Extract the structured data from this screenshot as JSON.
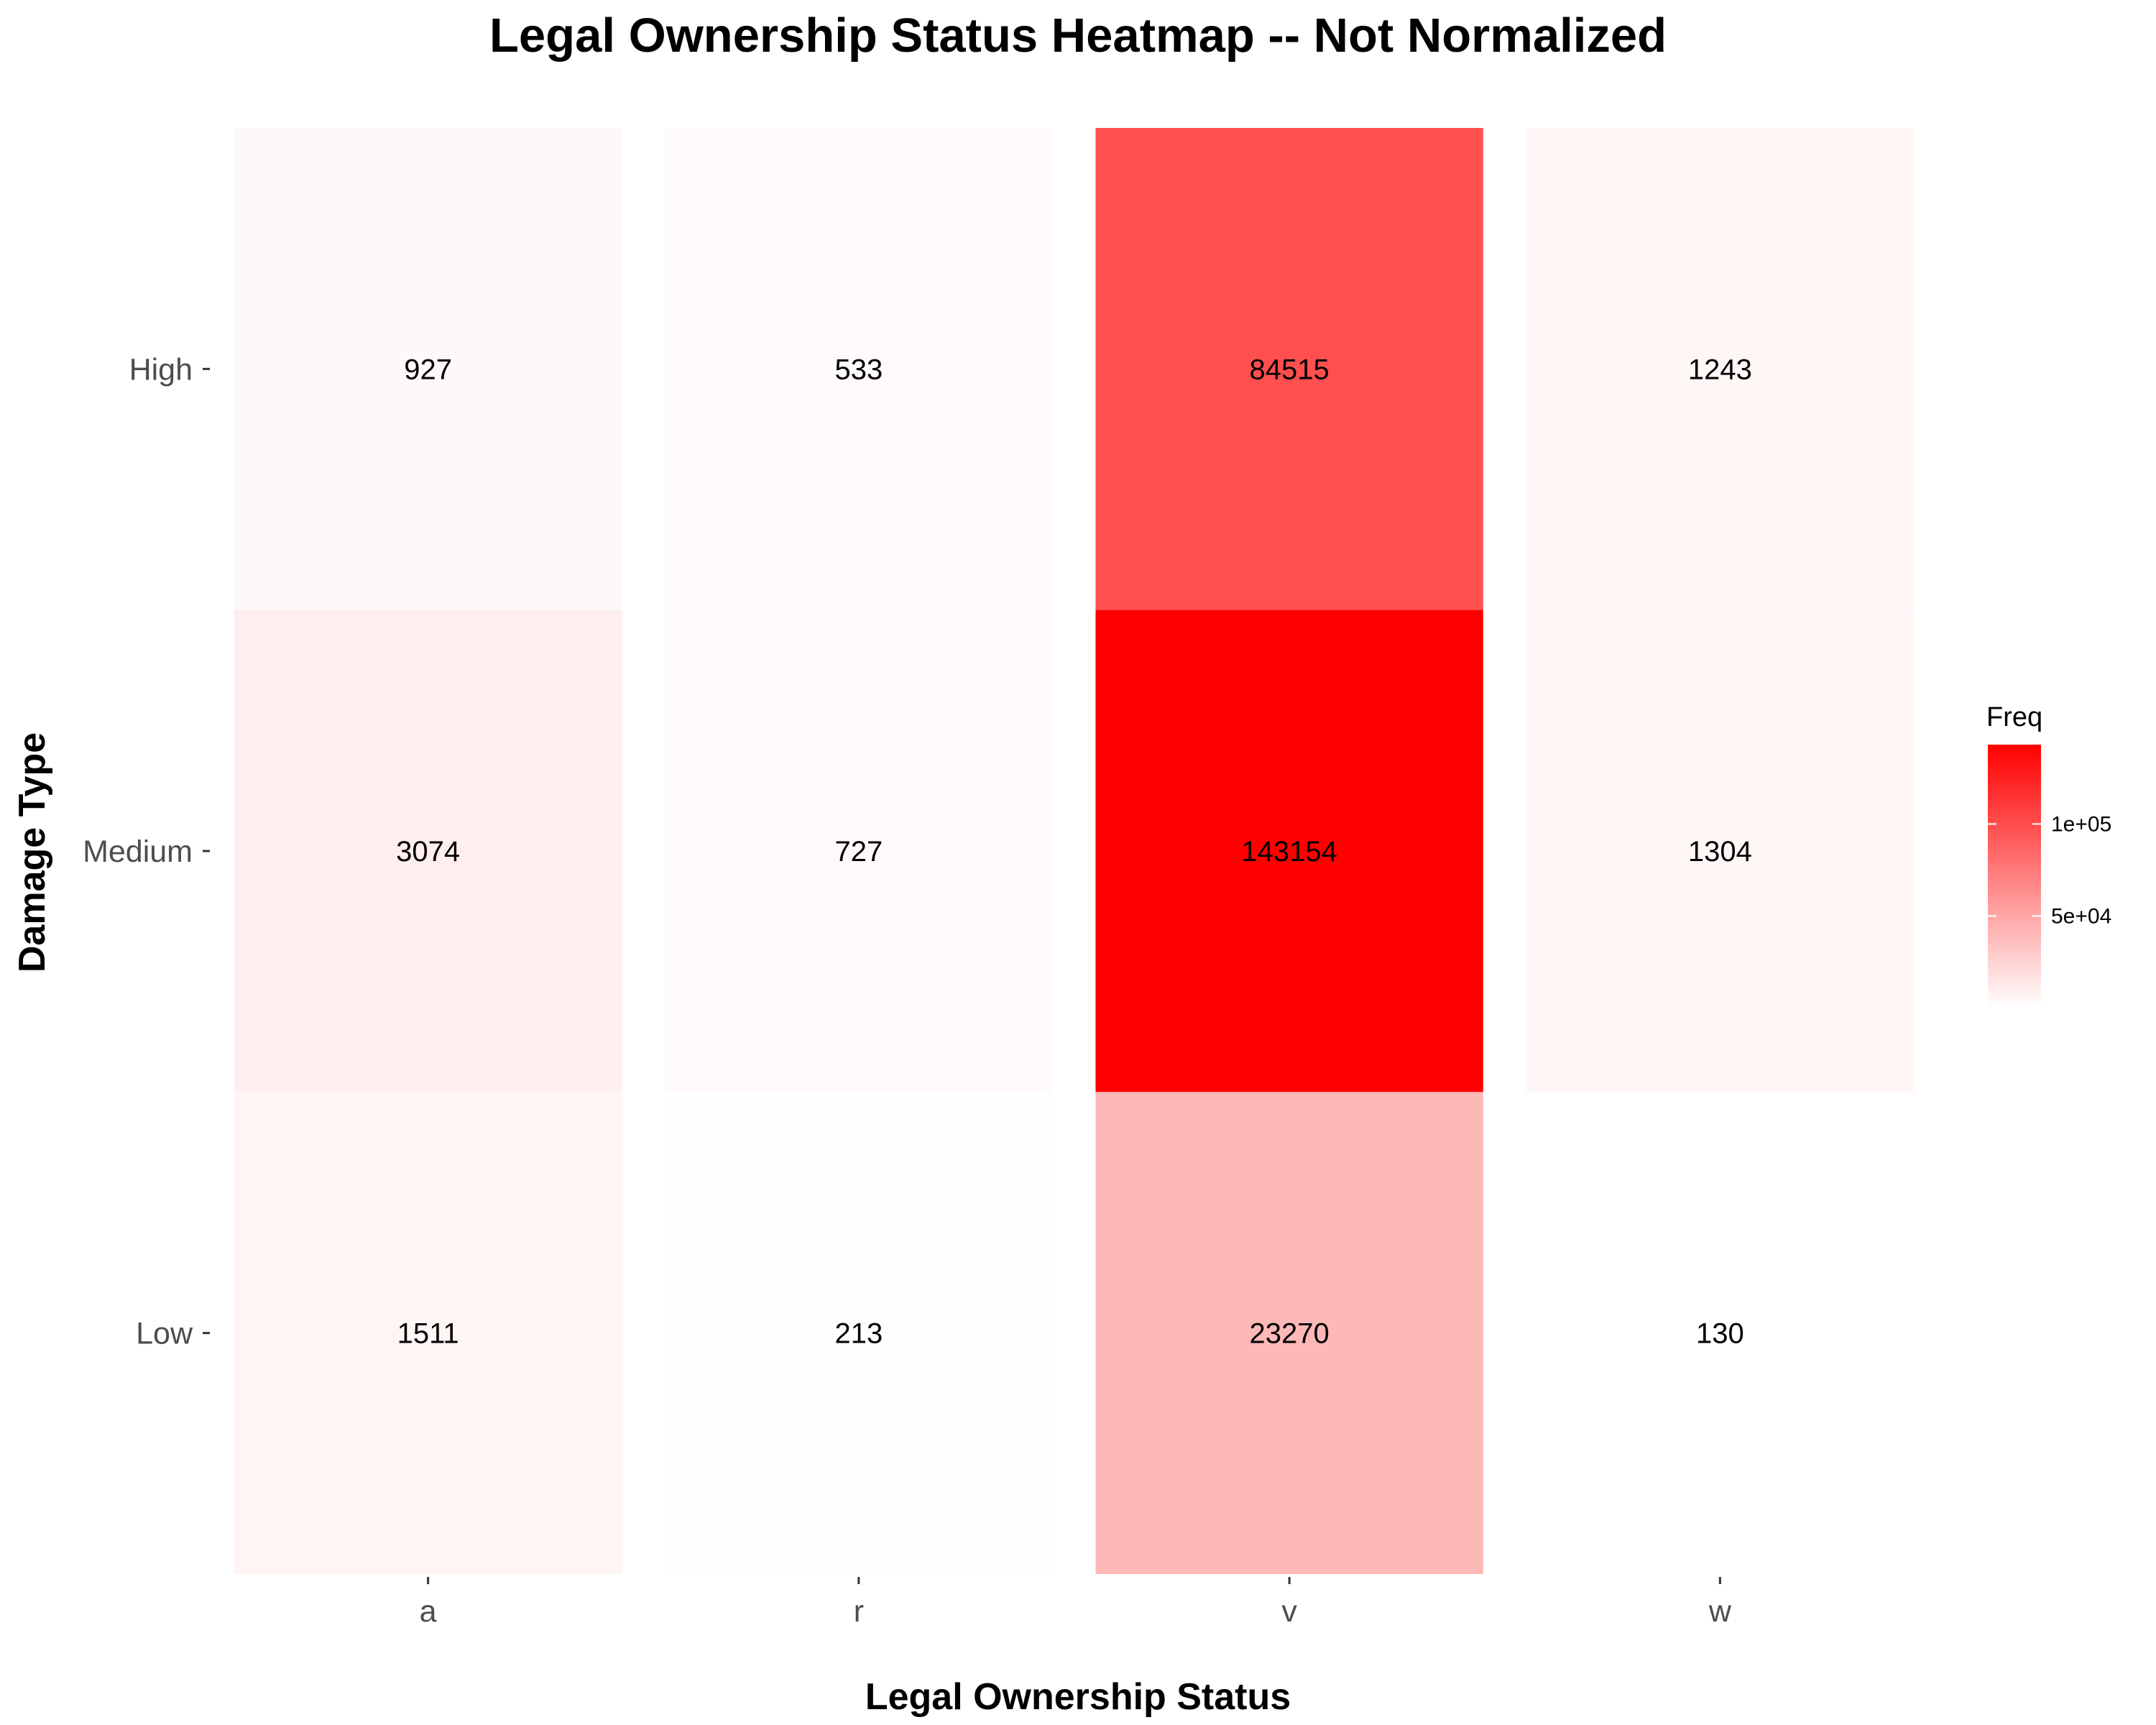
{
  "chart_data": {
    "type": "heatmap",
    "title": "Legal Ownership Status Heatmap -- Not Normalized",
    "xlabel": "Legal Ownership Status",
    "ylabel": "Damage Type",
    "x_categories": [
      "a",
      "r",
      "v",
      "w"
    ],
    "y_categories": [
      "High",
      "Medium",
      "Low"
    ],
    "values": [
      [
        927,
        533,
        84515,
        1243
      ],
      [
        3074,
        727,
        143154,
        1304
      ],
      [
        1511,
        213,
        23270,
        130
      ]
    ],
    "legend": {
      "title": "Freq",
      "placement": "right",
      "ticks": [
        {
          "value": 50000,
          "label": "5e+04"
        },
        {
          "value": 100000,
          "label": "1e+05"
        }
      ],
      "low_color": "#ffffff",
      "high_color": "#ff0000"
    },
    "grid": false
  }
}
